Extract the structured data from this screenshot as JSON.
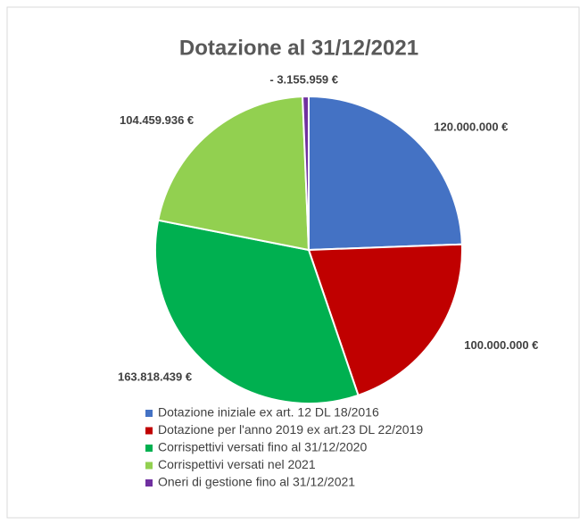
{
  "chart_data": {
    "type": "pie",
    "title": "Dotazione al 31/12/2021",
    "categories": [
      "Dotazione iniziale ex art. 12 DL 18/2016",
      "Dotazione per l'anno 2019 ex art.23 DL 22/2019",
      "Corrispettivi versati fino al 31/12/2020",
      "Corrispettivi versati nel 2021",
      "Oneri di gestione fino al 31/12/2021"
    ],
    "values": [
      120000000,
      100000000,
      163818439,
      104459936,
      -3155959
    ],
    "value_labels": [
      "120.000.000 €",
      "100.000.000 €",
      "163.818.439 €",
      "104.459.936 €",
      "- 3.155.959 €"
    ],
    "colors": [
      "#4472c4",
      "#c00000",
      "#00b050",
      "#92d050",
      "#7030a0"
    ],
    "legend": "bottom"
  }
}
